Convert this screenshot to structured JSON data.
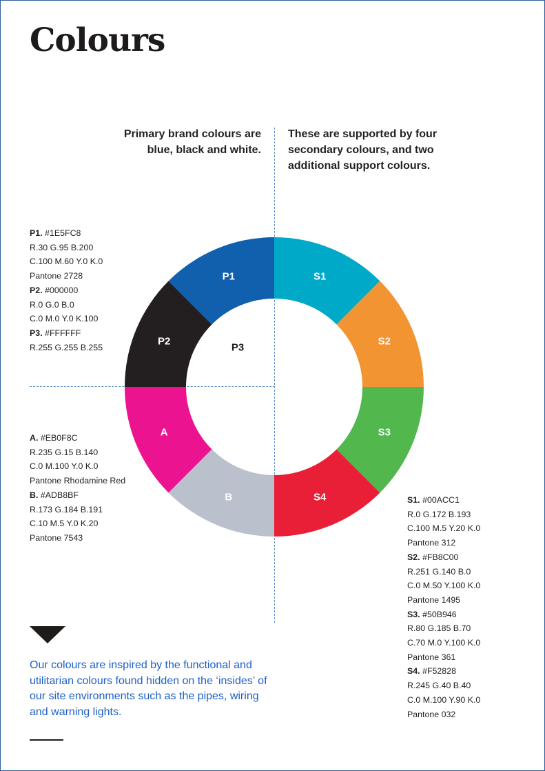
{
  "title": "Colours",
  "intro_left": "Primary brand colours are blue, black and white.",
  "intro_right": "These are supported by four secondary colours, and two additional support colours.",
  "wheel": {
    "segments": [
      {
        "label": "P1",
        "color": "#1E5FC8",
        "fill": "#1160ae"
      },
      {
        "label": "S1",
        "color": "#00ACC1",
        "fill": "#00a9c8"
      },
      {
        "label": "S2",
        "color": "#FB8C00",
        "fill": "#f39433"
      },
      {
        "label": "S3",
        "color": "#50B946",
        "fill": "#52b84e"
      },
      {
        "label": "S4",
        "color": "#F52828",
        "fill": "#e91f38"
      },
      {
        "label": "B",
        "color": "#ADB8BF",
        "fill": "#bac1cd"
      },
      {
        "label": "A",
        "color": "#EB0F8C",
        "fill": "#ec1390"
      },
      {
        "label": "P2",
        "color": "#000000",
        "fill": "#231f20"
      }
    ],
    "center_label": "P3"
  },
  "specs_primary": [
    {
      "code": "P1.",
      "hex": "#1E5FC8",
      "rgb": "R.30 G.95 B.200",
      "cmyk": "C.100 M.60 Y.0 K.0",
      "pantone": "Pantone 2728"
    },
    {
      "code": "P2.",
      "hex": "#000000",
      "rgb": "R.0 G.0 B.0",
      "cmyk": "C.0 M.0 Y.0 K.100"
    },
    {
      "code": "P3.",
      "hex": "#FFFFFF",
      "rgb": "R.255 G.255 B.255"
    }
  ],
  "specs_support": [
    {
      "code": "A.",
      "hex": "#EB0F8C",
      "rgb": "R.235 G.15 B.140",
      "cmyk": "C.0 M.100 Y.0 K.0",
      "pantone": "Pantone Rhodamine Red"
    },
    {
      "code": "B.",
      "hex": "#ADB8BF",
      "rgb": "R.173 G.184 B.191",
      "cmyk": "C.10 M.5 Y.0 K.20",
      "pantone": "Pantone 7543"
    }
  ],
  "specs_secondary": [
    {
      "code": "S1.",
      "hex": "#00ACC1",
      "rgb": "R.0 G.172 B.193",
      "cmyk": "C.100 M.5 Y.20 K.0",
      "pantone": "Pantone 312"
    },
    {
      "code": "S2.",
      "hex": "#FB8C00",
      "rgb": "R.251 G.140 B.0",
      "cmyk": "C.0 M.50 Y.100 K.0",
      "pantone": "Pantone 1495"
    },
    {
      "code": "S3.",
      "hex": "#50B946",
      "rgb": "R.80 G.185 B.70",
      "cmyk": "C.70 M.0 Y.100 K.0",
      "pantone": "Pantone 361"
    },
    {
      "code": "S4.",
      "hex": "#F52828",
      "rgb": "R.245 G.40 B.40",
      "cmyk": "C.0 M.100 Y.90 K.0",
      "pantone": "Pantone 032"
    }
  ],
  "quote": "Our colours are inspired by the functional and utilitarian colours found hidden on the ‘insides’ of our site environments such as the pipes, wiring and warning lights."
}
